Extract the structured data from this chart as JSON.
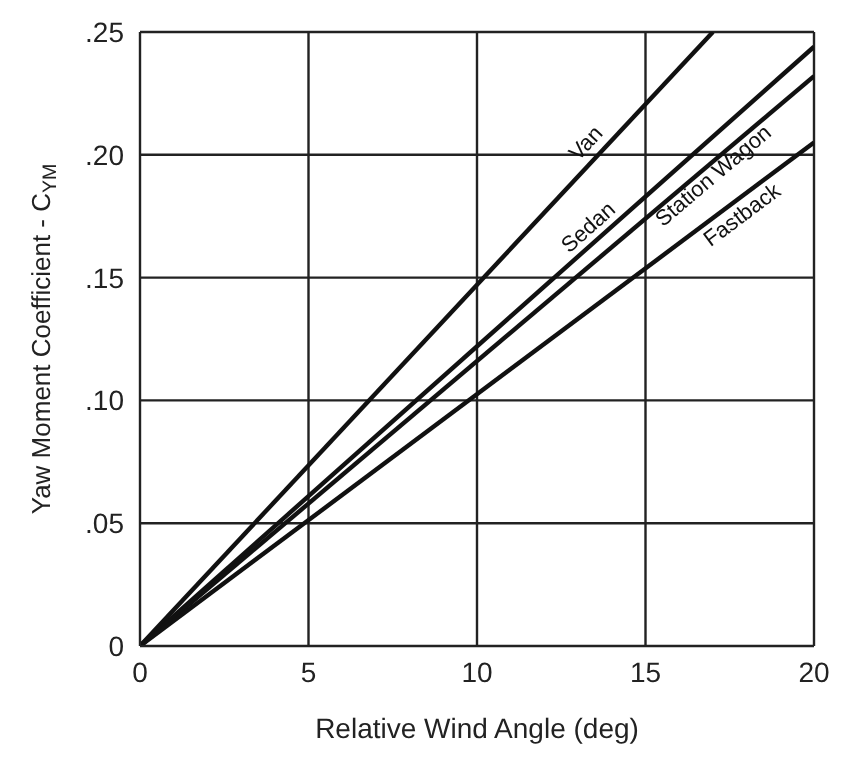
{
  "chart_data": {
    "type": "line",
    "xlabel": "Relative Wind Angle (deg)",
    "ylabel": "Yaw Moment Coefficient - C$_{YM}$",
    "xlim": [
      0,
      20
    ],
    "xticks": [
      0,
      5,
      10,
      15,
      20
    ],
    "ylim": [
      0,
      0.25
    ],
    "yticks": [
      {
        "value": 0,
        "label": "0"
      },
      {
        "value": 0.05,
        "label": ".05"
      },
      {
        "value": 0.1,
        "label": ".10"
      },
      {
        "value": 0.15,
        "label": ".15"
      },
      {
        "value": 0.2,
        "label": ".20"
      },
      {
        "value": 0.25,
        "label": ".25"
      }
    ],
    "grid": true,
    "legend": false,
    "marker": "none",
    "line_style": "solid",
    "series": [
      {
        "name": "Van",
        "color": "#111111",
        "x": [
          0,
          17
        ],
        "values": [
          0,
          0.25
        ]
      },
      {
        "name": "Sedan",
        "color": "#111111",
        "x": [
          0,
          20
        ],
        "values": [
          0,
          0.244
        ]
      },
      {
        "name": "Station Wagon",
        "color": "#111111",
        "x": [
          0,
          20
        ],
        "values": [
          0,
          0.232
        ]
      },
      {
        "name": "Fastback",
        "color": "#111111",
        "x": [
          0,
          20
        ],
        "values": [
          0,
          0.205
        ]
      }
    ]
  }
}
